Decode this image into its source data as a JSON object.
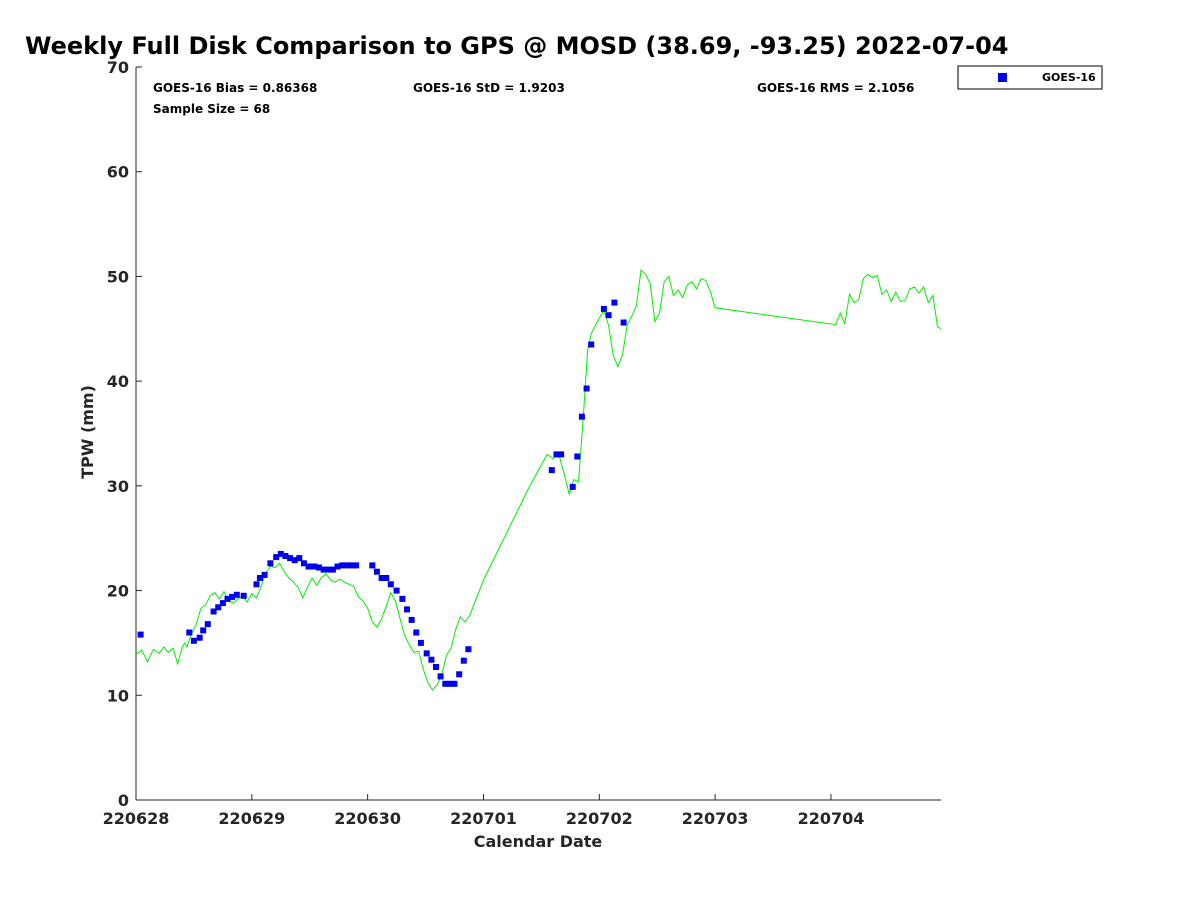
{
  "chart_data": {
    "type": "scatter",
    "title": "Weekly Full Disk Comparison to GPS @ MOSD (38.69, -93.25) 2022-07-04",
    "xlabel": "Calendar Date",
    "ylabel": "TPW (mm)",
    "xlim": [
      0,
      6.95
    ],
    "ylim": [
      0,
      70
    ],
    "xticks": [
      {
        "value": 0,
        "label": "220628"
      },
      {
        "value": 1,
        "label": "220629"
      },
      {
        "value": 2,
        "label": "220630"
      },
      {
        "value": 3,
        "label": "220701"
      },
      {
        "value": 4,
        "label": "220702"
      },
      {
        "value": 5,
        "label": "220703"
      },
      {
        "value": 6,
        "label": "220704"
      }
    ],
    "yticks": [
      0,
      10,
      20,
      30,
      40,
      50,
      60,
      70
    ],
    "stats": {
      "bias": "GOES-16 Bias = 0.86368",
      "std": "GOES-16 StD = 1.9203",
      "rms": "GOES-16 RMS = 2.1056",
      "sample": "Sample Size = 68"
    },
    "legend": {
      "position": "top-right",
      "entries": [
        "GOES-16"
      ]
    },
    "series": [
      {
        "name": "GOES-16",
        "color": "#0000ee",
        "marker": "square",
        "x": [
          0.04,
          0.46,
          0.5,
          0.55,
          0.58,
          0.62,
          0.67,
          0.71,
          0.75,
          0.79,
          0.83,
          0.87,
          0.93,
          1.04,
          1.07,
          1.11,
          1.16,
          1.21,
          1.25,
          1.29,
          1.33,
          1.37,
          1.41,
          1.45,
          1.49,
          1.54,
          1.58,
          1.62,
          1.66,
          1.7,
          1.74,
          1.78,
          1.82,
          1.86,
          1.9,
          2.04,
          2.08,
          2.12,
          2.16,
          2.2,
          2.25,
          2.3,
          2.34,
          2.38,
          2.42,
          2.46,
          2.51,
          2.55,
          2.59,
          2.63,
          2.67,
          2.71,
          2.75,
          2.79,
          2.83,
          2.87,
          3.59,
          3.63,
          3.67,
          3.77,
          3.81,
          3.85,
          3.89,
          3.93,
          4.04,
          4.08,
          4.13,
          4.21
        ],
        "y": [
          15.8,
          16.0,
          15.2,
          15.5,
          16.2,
          16.8,
          18.0,
          18.4,
          18.8,
          19.2,
          19.4,
          19.6,
          19.5,
          20.6,
          21.2,
          21.5,
          22.6,
          23.2,
          23.5,
          23.3,
          23.1,
          22.9,
          23.1,
          22.6,
          22.3,
          22.3,
          22.2,
          22.0,
          22.0,
          22.0,
          22.3,
          22.4,
          22.4,
          22.4,
          22.4,
          22.4,
          21.8,
          21.2,
          21.2,
          20.6,
          20.0,
          19.2,
          18.2,
          17.2,
          16.0,
          15.0,
          14.0,
          13.4,
          12.7,
          11.8,
          11.1,
          11.1,
          11.1,
          12.0,
          13.3,
          14.4,
          31.5,
          33.0,
          33.0,
          29.9,
          32.8,
          36.6,
          39.3,
          43.5,
          46.9,
          46.3,
          47.5,
          45.6
        ]
      },
      {
        "name": "",
        "color": "#00ee00",
        "marker": "line",
        "x": [
          0.0,
          0.05,
          0.1,
          0.15,
          0.2,
          0.24,
          0.28,
          0.32,
          0.36,
          0.4,
          0.42,
          0.44,
          0.47,
          0.52,
          0.56,
          0.6,
          0.64,
          0.68,
          0.72,
          0.76,
          0.8,
          0.84,
          0.88,
          0.92,
          0.96,
          1.0,
          1.04,
          1.08,
          1.12,
          1.16,
          1.2,
          1.24,
          1.28,
          1.32,
          1.36,
          1.4,
          1.44,
          1.48,
          1.52,
          1.56,
          1.6,
          1.64,
          1.68,
          1.72,
          1.76,
          1.8,
          1.84,
          1.88,
          1.92,
          1.96,
          2.0,
          2.04,
          2.08,
          2.12,
          2.16,
          2.2,
          2.24,
          2.28,
          2.32,
          2.36,
          2.4,
          2.44,
          2.48,
          2.52,
          2.56,
          2.6,
          2.64,
          2.68,
          2.72,
          2.76,
          2.8,
          2.84,
          2.88,
          3.0,
          3.2,
          3.4,
          3.55,
          3.6,
          3.65,
          3.7,
          3.74,
          3.78,
          3.82,
          3.86,
          3.9,
          3.93,
          3.96,
          4.0,
          4.04,
          4.08,
          4.12,
          4.16,
          4.2,
          4.24,
          4.28,
          4.32,
          4.36,
          4.4,
          4.44,
          4.48,
          4.52,
          4.56,
          4.6,
          4.64,
          4.68,
          4.72,
          4.76,
          4.8,
          4.84,
          4.88,
          4.92,
          4.96,
          5.0,
          6.04,
          6.08,
          6.12,
          6.16,
          6.2,
          6.24,
          6.28,
          6.32,
          6.36,
          6.4,
          6.44,
          6.48,
          6.52,
          6.56,
          6.6,
          6.64,
          6.68,
          6.72,
          6.76,
          6.8,
          6.84,
          6.88,
          6.92,
          6.95
        ],
        "y": [
          13.9,
          14.3,
          13.2,
          14.4,
          14.0,
          14.6,
          14.1,
          14.5,
          13.0,
          14.6,
          15.0,
          14.6,
          15.6,
          16.8,
          18.3,
          18.6,
          19.5,
          19.8,
          19.2,
          19.9,
          19.0,
          18.8,
          19.2,
          19.5,
          18.9,
          19.7,
          19.3,
          20.4,
          21.7,
          22.3,
          22.2,
          22.6,
          21.8,
          21.2,
          20.8,
          20.3,
          19.3,
          20.3,
          21.2,
          20.5,
          21.2,
          21.6,
          21.0,
          20.8,
          21.1,
          20.8,
          20.6,
          20.4,
          19.4,
          19.0,
          18.3,
          17.0,
          16.5,
          17.3,
          18.5,
          19.8,
          19.0,
          17.3,
          15.7,
          14.8,
          14.1,
          14.2,
          12.5,
          11.2,
          10.5,
          11.0,
          12.0,
          13.8,
          14.5,
          16.3,
          17.5,
          17.0,
          17.6,
          21.0,
          25.5,
          30.0,
          33.0,
          32.6,
          33.0,
          31.0,
          29.2,
          30.6,
          30.4,
          36.3,
          43.0,
          44.5,
          45.2,
          46.0,
          46.8,
          45.3,
          42.5,
          41.4,
          42.5,
          45.3,
          46.2,
          47.2,
          50.6,
          50.2,
          49.3,
          45.7,
          46.5,
          49.5,
          50.0,
          48.2,
          48.7,
          48.0,
          49.2,
          49.5,
          48.8,
          49.8,
          49.6,
          48.5,
          47.0,
          45.4,
          46.5,
          45.5,
          48.3,
          47.5,
          47.8,
          49.8,
          50.2,
          49.9,
          50.1,
          48.3,
          48.7,
          47.6,
          48.5,
          47.6,
          47.7,
          48.8,
          49.0,
          48.4,
          49.0,
          47.5,
          48.2,
          45.2,
          45.0
        ]
      }
    ]
  }
}
